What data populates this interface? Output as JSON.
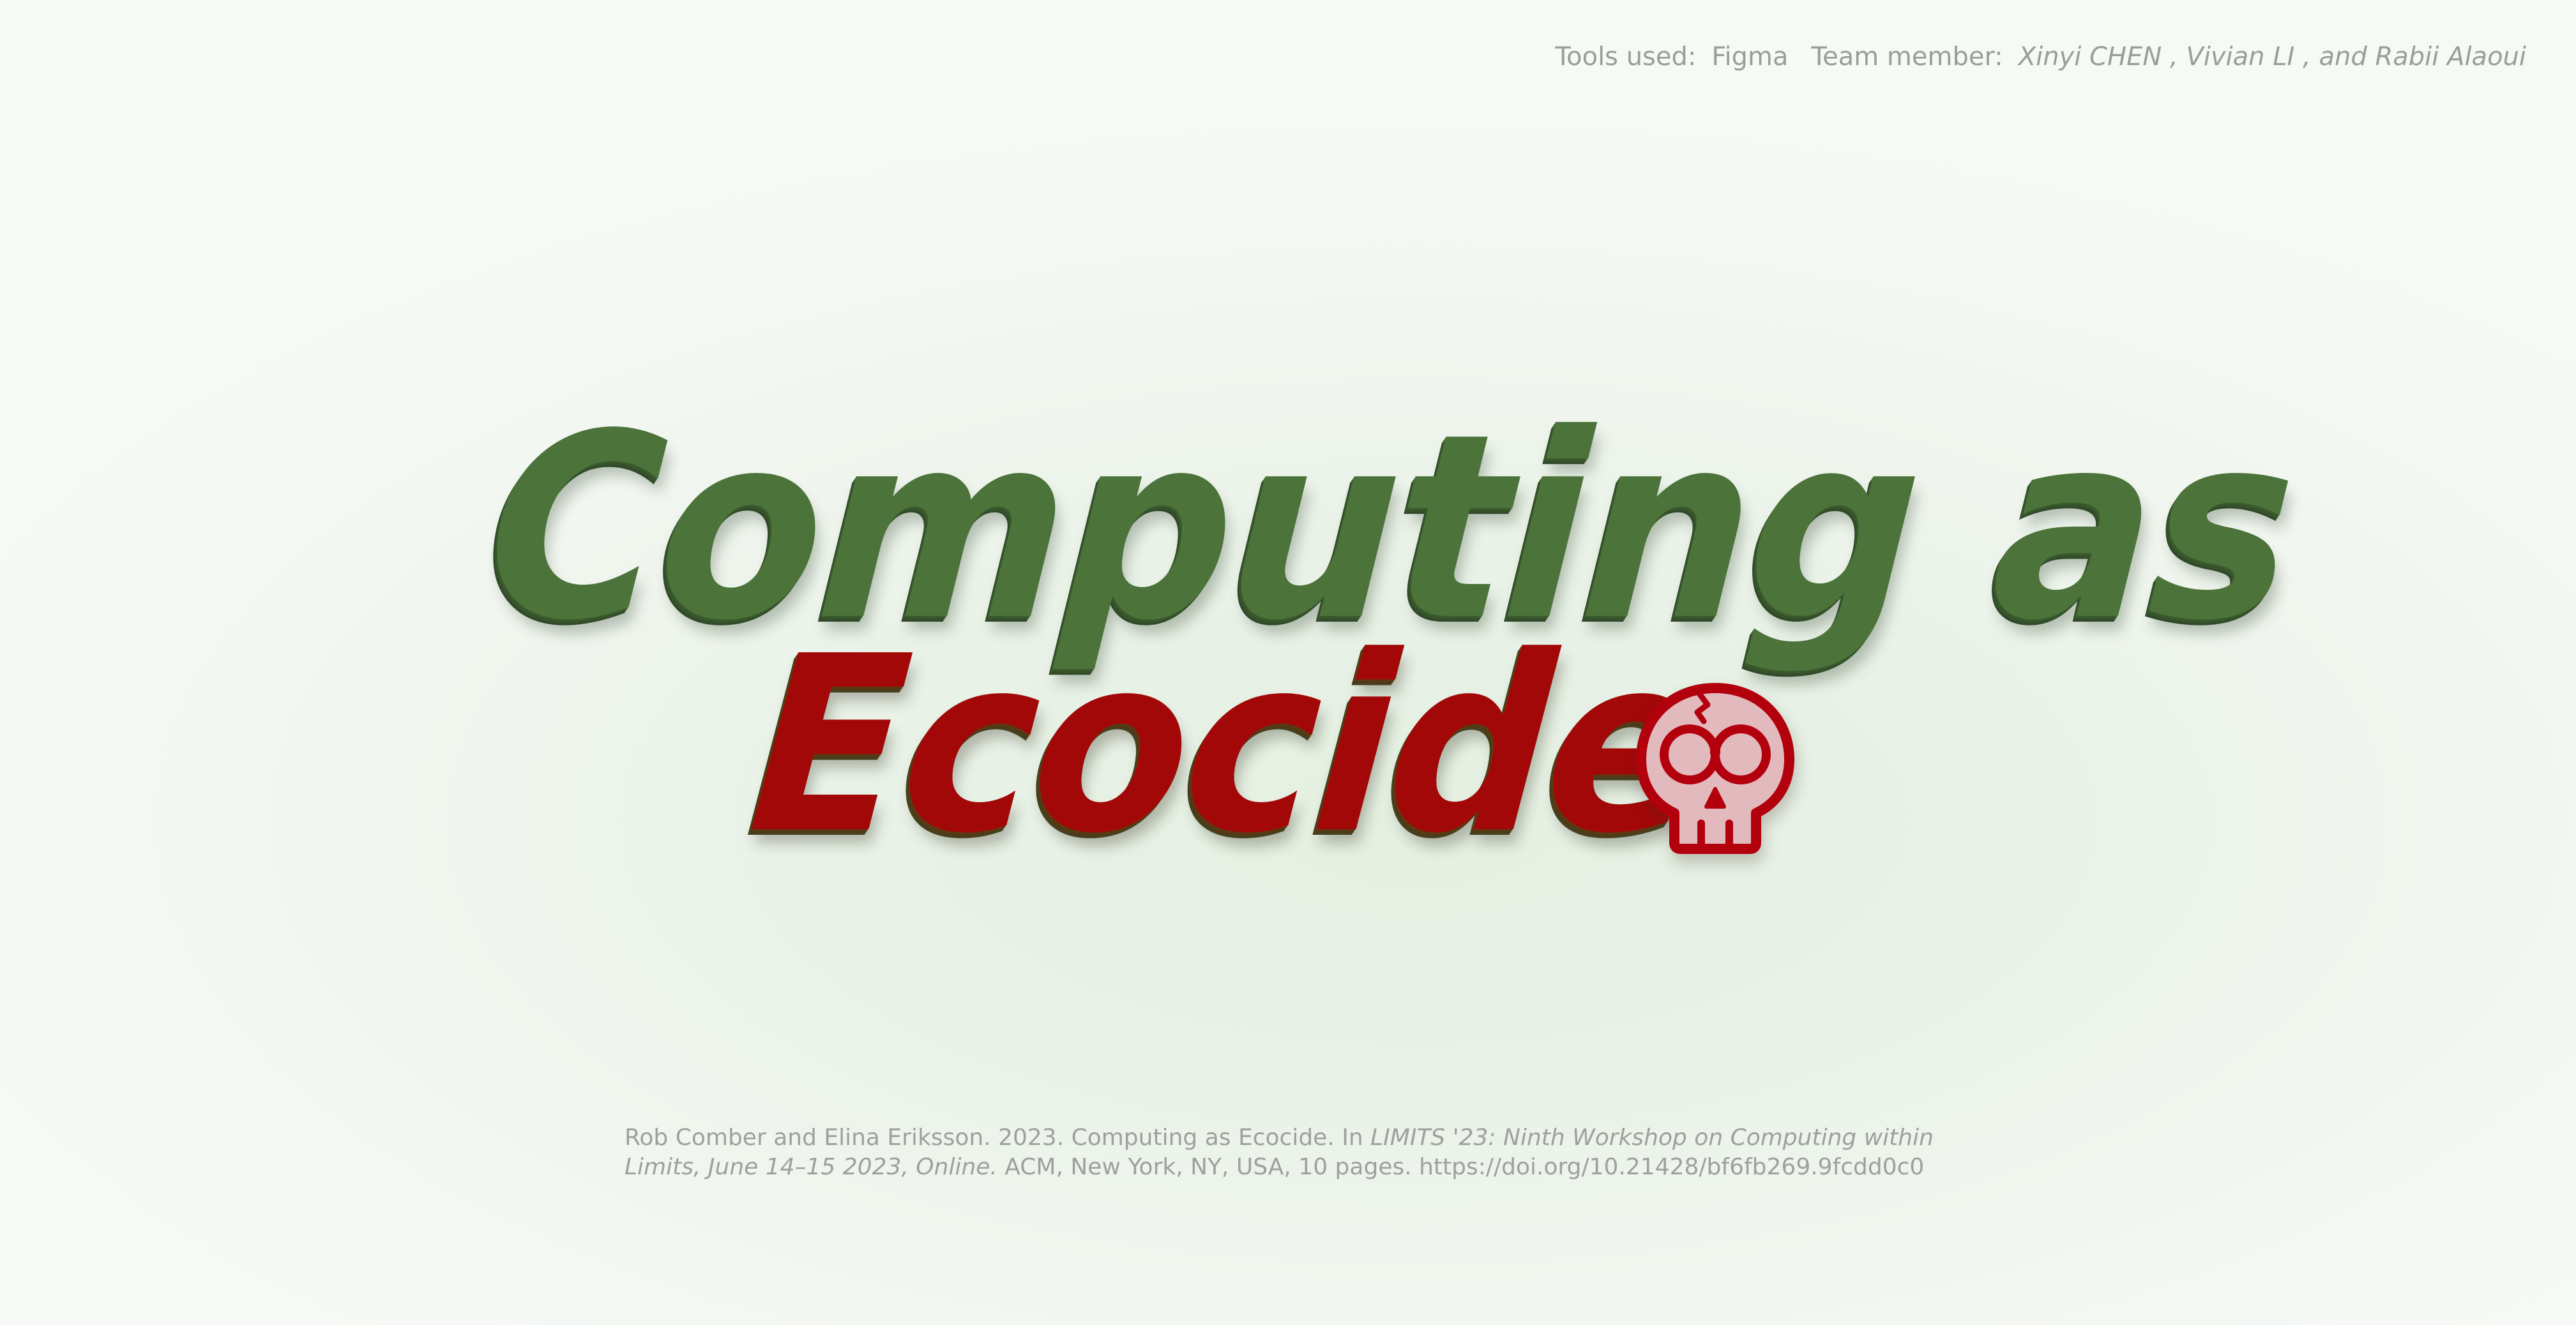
{
  "credits": {
    "tools_label": "Tools used:",
    "tools_value": "Figma",
    "team_label": "Team member:",
    "team_value": "Xinyi CHEN , Vivian LI , and Rabii Alaoui"
  },
  "title": {
    "line1": "Computing as",
    "line2": "Ecocide"
  },
  "icon": {
    "name": "skull-icon",
    "color": "#b3000d",
    "fill": "#e2b9bd"
  },
  "citation": {
    "part1": "Rob Comber and Elina Eriksson. 2023. Computing as Ecocide. In ",
    "venue": "LIMITS '23: Ninth Workshop on Computing within Limits, June 14–15 2023, Online.",
    "part2": " ACM, New York, NY, USA, 10 pages. https://doi.org/10.21428/bf6fb269.9fcdd0c0"
  },
  "colors": {
    "title_green": "#4c733a",
    "title_red": "#a30808",
    "muted_text": "#9a9d99",
    "background": "#eef4ec"
  }
}
